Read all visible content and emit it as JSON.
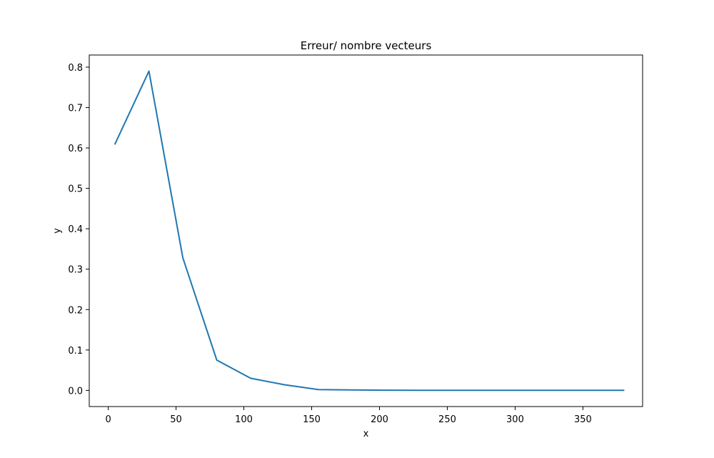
{
  "chart_data": {
    "type": "line",
    "title": "Erreur/ nombre vecteurs",
    "xlabel": "x",
    "ylabel": "y",
    "xlim": [
      -14,
      394
    ],
    "ylim": [
      -0.04,
      0.83
    ],
    "xticks": [
      0,
      50,
      100,
      150,
      200,
      250,
      300,
      350
    ],
    "yticks": [
      0.0,
      0.1,
      0.2,
      0.3,
      0.4,
      0.5,
      0.6,
      0.7,
      0.8
    ],
    "xtick_labels": [
      "0",
      "50",
      "100",
      "150",
      "200",
      "250",
      "300",
      "350"
    ],
    "ytick_labels": [
      "0.0",
      "0.1",
      "0.2",
      "0.3",
      "0.4",
      "0.5",
      "0.6",
      "0.7",
      "0.8"
    ],
    "grid": false,
    "series": [
      {
        "color": "#1f77b4",
        "x": [
          5,
          30,
          55,
          80,
          105,
          130,
          155,
          180,
          205,
          230,
          255,
          280,
          305,
          330,
          355,
          380
        ],
        "y": [
          0.61,
          0.79,
          0.328,
          0.075,
          0.03,
          0.014,
          0.002,
          0.001,
          0.0005,
          0.0003,
          0.0002,
          0.0001,
          0.0001,
          0.0001,
          0.0001,
          0.0001
        ]
      }
    ]
  }
}
